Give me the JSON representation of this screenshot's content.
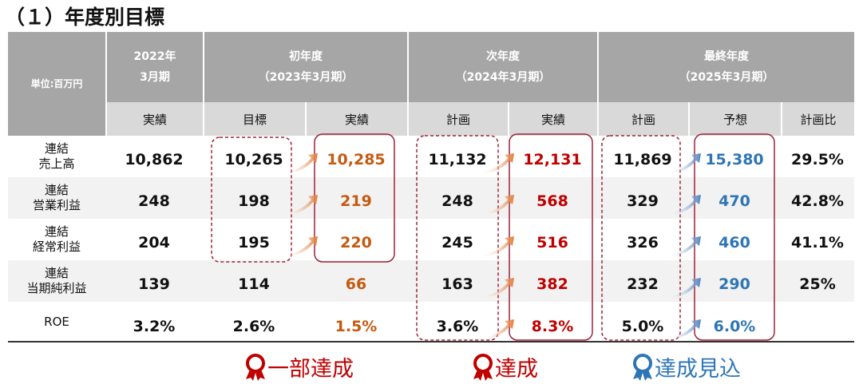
{
  "header": {
    "title": "（１）年度別目標"
  },
  "table": {
    "unit": "単位:百万円",
    "groups": [
      "2022年\n3月期",
      "初年度\n（2023年3月期）",
      "次年度\n（2024年3月期）",
      "最終年度\n（2025年3月期）"
    ],
    "subheaders": [
      "実績",
      "目標",
      "実績",
      "計画",
      "実績",
      "計画",
      "予想",
      "計画比"
    ],
    "rows": [
      {
        "label": "連結\n売上高",
        "cells": [
          "10,862",
          "10,265",
          "10,285",
          "11,132",
          "12,131",
          "11,869",
          "15,380",
          "29.5%"
        ]
      },
      {
        "label": "連結\n営業利益",
        "cells": [
          "248",
          "198",
          "219",
          "248",
          "568",
          "329",
          "470",
          "42.8%"
        ]
      },
      {
        "label": "連結\n経常利益",
        "cells": [
          "204",
          "195",
          "220",
          "245",
          "516",
          "326",
          "460",
          "41.1%"
        ]
      },
      {
        "label": "連結\n当期純利益",
        "cells": [
          "139",
          "114",
          "66",
          "163",
          "382",
          "232",
          "290",
          "25%"
        ]
      },
      {
        "label": "ROE",
        "cells": [
          "3.2%",
          "2.6%",
          "1.5%",
          "3.6%",
          "8.3%",
          "5.0%",
          "6.0%",
          ""
        ]
      }
    ]
  },
  "legend": [
    "一部達成",
    "達成",
    "達成見込"
  ]
}
